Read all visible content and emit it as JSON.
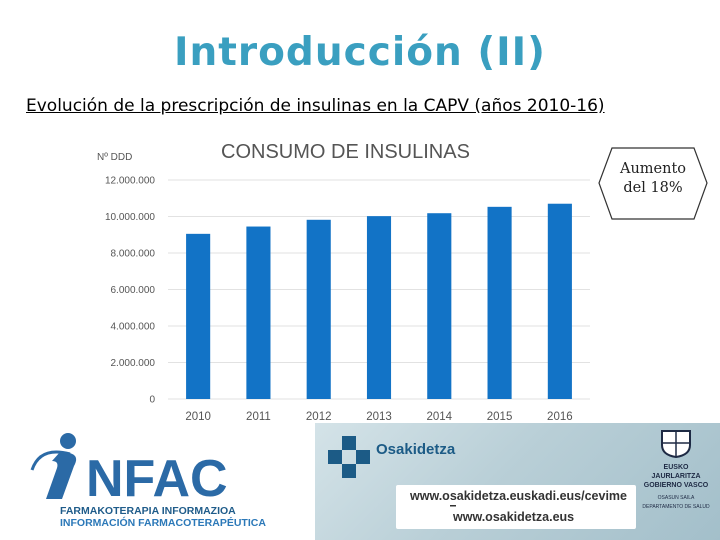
{
  "slide": {
    "title": "Introducción (II)",
    "subtitle": "Evolución de la prescripción de insulinas en la CAPV (años 2010-16)",
    "title_color": "#3a9fc0"
  },
  "callout": {
    "line1": "Aumento",
    "line2": "del 18%"
  },
  "chart_data": {
    "type": "bar",
    "title": "CONSUMO DE INSULINAS",
    "ylabel": "Nº DDD",
    "xlabel": "",
    "categories": [
      "2010",
      "2011",
      "2012",
      "2013",
      "2014",
      "2015",
      "2016"
    ],
    "values": [
      9050000,
      9450000,
      9820000,
      10020000,
      10180000,
      10530000,
      10700000
    ],
    "ylim": [
      0,
      12000000
    ],
    "yticks": [
      0,
      2000000,
      4000000,
      6000000,
      8000000,
      10000000,
      12000000
    ],
    "ytick_labels": [
      "0",
      "2.000.000",
      "4.000.000",
      "6.000.000",
      "8.000.000",
      "10.000.000",
      "12.000.000"
    ],
    "bar_color": "#1273c6",
    "grid": true,
    "legend": "none"
  },
  "footer": {
    "infac_name": "NFAC",
    "infac_line1": "FARMAKOTERAPIA INFORMAZIOA",
    "infac_line2": "INFORMACIÓN FARMACOTERAPÉUTICA",
    "osakidetza": "Osakidetza",
    "url1": "www.osakidetza.euskadi.eus/cevime",
    "url2": "www.osakidetza.eus",
    "gov_line1": "EUSKO JAURLARITZA",
    "gov_line2": "GOBIERNO VASCO",
    "gov_line3": "OSASUN SAILA",
    "gov_line4": "DEPARTAMENTO DE SALUD",
    "brand_color": "#2b6aa6"
  }
}
